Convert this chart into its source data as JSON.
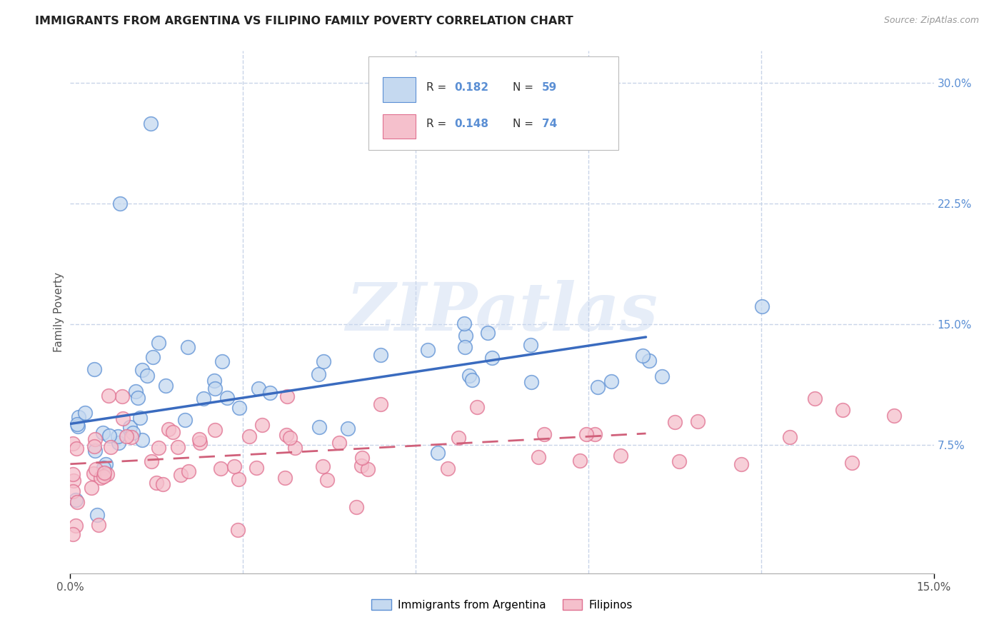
{
  "title": "IMMIGRANTS FROM ARGENTINA VS FILIPINO FAMILY POVERTY CORRELATION CHART",
  "source": "Source: ZipAtlas.com",
  "ylabel": "Family Poverty",
  "x_min": 0.0,
  "x_max": 0.15,
  "y_min": -0.005,
  "y_max": 0.32,
  "y_ticks_right": [
    0.075,
    0.15,
    0.225,
    0.3
  ],
  "y_tick_labels_right": [
    "7.5%",
    "15.0%",
    "22.5%",
    "30.0%"
  ],
  "watermark": "ZIPatlas",
  "legend_r1": "R = 0.182",
  "legend_n1": "N = 59",
  "legend_r2": "R = 0.148",
  "legend_n2": "N = 74",
  "blue_face": "#c5d9f0",
  "blue_edge": "#5b8fd4",
  "pink_face": "#f5c0cc",
  "pink_edge": "#e07090",
  "blue_line_color": "#3a6bbf",
  "pink_line_color": "#d0607a",
  "label_color": "#5b8fd4",
  "grid_color": "#c8d4e8",
  "bg_color": "#ffffff",
  "title_color": "#222222",
  "source_color": "#999999",
  "ylabel_color": "#555555",
  "xtick_color": "#555555",
  "blue_trend_x0": 0.0,
  "blue_trend_y0": 0.088,
  "blue_trend_x1": 0.1,
  "blue_trend_y1": 0.142,
  "pink_trend_x0": 0.0,
  "pink_trend_y0": 0.063,
  "pink_trend_x1": 0.1,
  "pink_trend_y1": 0.082
}
